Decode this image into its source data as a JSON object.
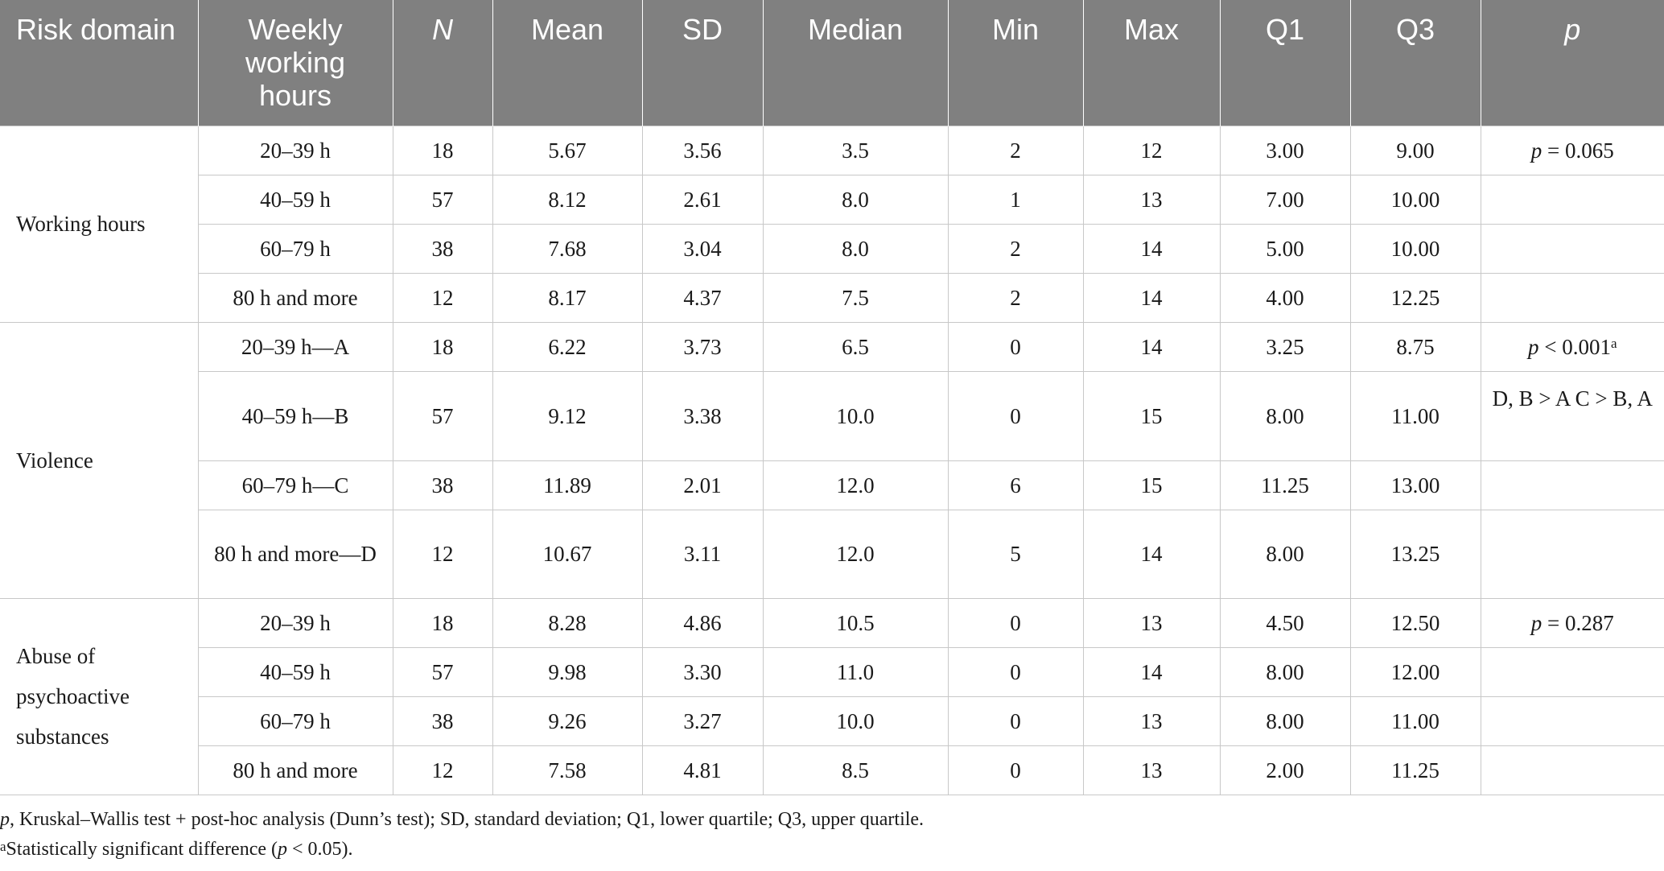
{
  "table": {
    "headers": {
      "risk_domain": "Risk domain",
      "weekly_hours": "Weekly working hours",
      "n": "N",
      "mean": "Mean",
      "sd": "SD",
      "median": "Median",
      "min": "Min",
      "max": "Max",
      "q1": "Q1",
      "q3": "Q3",
      "p": "p"
    },
    "groups": [
      {
        "domain": "Working hours",
        "p_symbol": "p",
        "p_value": " = 0.065",
        "p_sup": "",
        "posthoc": "",
        "rows": [
          {
            "hours": "20–39 h",
            "n": "18",
            "mean": "5.67",
            "sd": "3.56",
            "median": "3.5",
            "min": "2",
            "max": "12",
            "q1": "3.00",
            "q3": "9.00"
          },
          {
            "hours": "40–59 h",
            "n": "57",
            "mean": "8.12",
            "sd": "2.61",
            "median": "8.0",
            "min": "1",
            "max": "13",
            "q1": "7.00",
            "q3": "10.00"
          },
          {
            "hours": "60–79 h",
            "n": "38",
            "mean": "7.68",
            "sd": "3.04",
            "median": "8.0",
            "min": "2",
            "max": "14",
            "q1": "5.00",
            "q3": "10.00"
          },
          {
            "hours": "80 h and more",
            "n": "12",
            "mean": "8.17",
            "sd": "4.37",
            "median": "7.5",
            "min": "2",
            "max": "14",
            "q1": "4.00",
            "q3": "12.25"
          }
        ]
      },
      {
        "domain": "Violence",
        "p_symbol": "p",
        "p_value": " < 0.001",
        "p_sup": "a",
        "posthoc": "D, B > A C > B, A",
        "rows": [
          {
            "hours": "20–39 h—A",
            "n": "18",
            "mean": "6.22",
            "sd": "3.73",
            "median": "6.5",
            "min": "0",
            "max": "14",
            "q1": "3.25",
            "q3": "8.75"
          },
          {
            "hours": "40–59 h—B",
            "n": "57",
            "mean": "9.12",
            "sd": "3.38",
            "median": "10.0",
            "min": "0",
            "max": "15",
            "q1": "8.00",
            "q3": "11.00"
          },
          {
            "hours": "60–79 h—C",
            "n": "38",
            "mean": "11.89",
            "sd": "2.01",
            "median": "12.0",
            "min": "6",
            "max": "15",
            "q1": "11.25",
            "q3": "13.00"
          },
          {
            "hours": "80 h and more—D",
            "n": "12",
            "mean": "10.67",
            "sd": "3.11",
            "median": "12.0",
            "min": "5",
            "max": "14",
            "q1": "8.00",
            "q3": "13.25"
          }
        ]
      },
      {
        "domain": "Abuse of psychoactive substances",
        "p_symbol": "p",
        "p_value": " = 0.287",
        "p_sup": "",
        "posthoc": "",
        "rows": [
          {
            "hours": "20–39 h",
            "n": "18",
            "mean": "8.28",
            "sd": "4.86",
            "median": "10.5",
            "min": "0",
            "max": "13",
            "q1": "4.50",
            "q3": "12.50"
          },
          {
            "hours": "40–59 h",
            "n": "57",
            "mean": "9.98",
            "sd": "3.30",
            "median": "11.0",
            "min": "0",
            "max": "14",
            "q1": "8.00",
            "q3": "12.00"
          },
          {
            "hours": "60–79 h",
            "n": "38",
            "mean": "9.26",
            "sd": "3.27",
            "median": "10.0",
            "min": "0",
            "max": "13",
            "q1": "8.00",
            "q3": "11.00"
          },
          {
            "hours": "80 h and more",
            "n": "12",
            "mean": "7.58",
            "sd": "4.81",
            "median": "8.5",
            "min": "0",
            "max": "13",
            "q1": "2.00",
            "q3": "11.25"
          }
        ]
      }
    ]
  },
  "footnotes": {
    "line1_symbol": "p",
    "line1_text": ", Kruskal–Wallis test + post-hoc analysis (Dunn’s test); SD, standard deviation; Q1, lower quartile; Q3, upper quartile.",
    "line2_marker": "a",
    "line2_text_before": "Statistically significant difference (",
    "line2_symbol": "p",
    "line2_text_after": " < 0.05)."
  }
}
